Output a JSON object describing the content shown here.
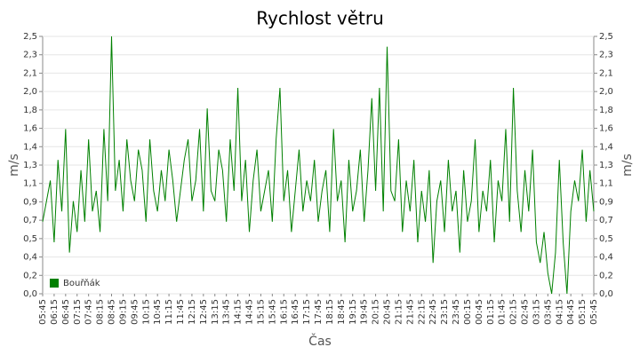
{
  "chart_data": {
    "type": "line",
    "title": "Rychlost větru",
    "x_label": "Čas",
    "y_label": "m/s",
    "legend": "lower left",
    "grid": true,
    "categories": [
      "05:45",
      null,
      null,
      "06:15",
      null,
      null,
      "06:45",
      null,
      null,
      "07:15",
      null,
      null,
      "07:45",
      null,
      null,
      "08:15",
      null,
      null,
      "08:45",
      null,
      null,
      "09:15",
      null,
      null,
      "09:45",
      null,
      null,
      "10:15",
      null,
      null,
      "10:45",
      null,
      null,
      "11:15",
      null,
      null,
      "11:45",
      null,
      null,
      "12:15",
      null,
      null,
      "12:45",
      null,
      null,
      "13:15",
      null,
      null,
      "13:45",
      null,
      null,
      "14:15",
      null,
      null,
      "14:45",
      null,
      null,
      "15:15",
      null,
      null,
      "15:45",
      null,
      null,
      "16:15",
      null,
      null,
      "16:45",
      null,
      null,
      "17:15",
      null,
      null,
      "17:45",
      null,
      null,
      "18:15",
      null,
      null,
      "18:45",
      null,
      null,
      "19:15",
      null,
      null,
      "19:45",
      null,
      null,
      "20:15",
      null,
      null,
      "20:45",
      null,
      null,
      "21:15",
      null,
      null,
      "21:45",
      null,
      null,
      "22:15",
      null,
      null,
      "22:45",
      null,
      null,
      "23:15",
      null,
      null,
      "23:45",
      null,
      null,
      "00:15",
      null,
      null,
      "00:45",
      null,
      null,
      "01:15",
      null,
      null,
      "01:45",
      null,
      null,
      "02:15",
      null,
      null,
      "02:45",
      null,
      null,
      "03:15",
      null,
      null,
      "03:45",
      null,
      null,
      "04:15",
      null,
      null,
      "04:45",
      null,
      null,
      "05:15",
      null,
      null,
      "05:45"
    ],
    "series": [
      {
        "name": "Bouřňák",
        "color": "#008000",
        "values": [
          0.7,
          0.9,
          1.1,
          0.5,
          1.3,
          0.8,
          1.6,
          0.4,
          0.9,
          0.6,
          1.2,
          0.7,
          1.5,
          0.8,
          1.0,
          0.6,
          1.6,
          0.9,
          2.5,
          1.0,
          1.3,
          0.8,
          1.5,
          1.1,
          0.9,
          1.4,
          1.2,
          0.7,
          1.5,
          1.0,
          0.8,
          1.2,
          0.9,
          1.4,
          1.1,
          0.7,
          1.0,
          1.3,
          1.5,
          0.9,
          1.1,
          1.6,
          0.8,
          1.8,
          1.0,
          0.9,
          1.4,
          1.2,
          0.7,
          1.5,
          1.0,
          2.0,
          0.9,
          1.3,
          0.6,
          1.1,
          1.4,
          0.8,
          1.0,
          1.2,
          0.7,
          1.5,
          2.0,
          0.9,
          1.2,
          0.6,
          1.0,
          1.4,
          0.8,
          1.1,
          0.9,
          1.3,
          0.7,
          1.0,
          1.2,
          0.6,
          1.6,
          0.9,
          1.1,
          0.5,
          1.3,
          0.8,
          1.0,
          1.4,
          0.7,
          1.2,
          1.9,
          1.0,
          2.0,
          0.8,
          2.4,
          1.0,
          0.9,
          1.5,
          0.6,
          1.1,
          0.8,
          1.3,
          0.5,
          1.0,
          0.7,
          1.2,
          0.3,
          0.9,
          1.1,
          0.6,
          1.3,
          0.8,
          1.0,
          0.4,
          1.2,
          0.7,
          0.9,
          1.5,
          0.6,
          1.0,
          0.8,
          1.3,
          0.5,
          1.1,
          0.9,
          1.6,
          0.7,
          2.0,
          1.0,
          0.6,
          1.2,
          0.8,
          1.4,
          0.5,
          0.3,
          0.6,
          0.2,
          0.0,
          0.4,
          1.3,
          0.5,
          0.0,
          0.8,
          1.1,
          0.9,
          1.4,
          0.7,
          1.2,
          0.8
        ]
      }
    ],
    "ylim": [
      0,
      2.5
    ],
    "yticks": [
      {
        "value": 0,
        "label": "0,0"
      },
      {
        "value": 0.1786,
        "label": "0,2"
      },
      {
        "value": 0.3571,
        "label": "0,4"
      },
      {
        "value": 0.5357,
        "label": "0,5"
      },
      {
        "value": 0.7143,
        "label": "0,7"
      },
      {
        "value": 0.8929,
        "label": "0,9"
      },
      {
        "value": 1.0714,
        "label": "1,1"
      },
      {
        "value": 1.25,
        "label": "1,3"
      },
      {
        "value": 1.4286,
        "label": "1,4"
      },
      {
        "value": 1.6071,
        "label": "1,6"
      },
      {
        "value": 1.7857,
        "label": "1,8"
      },
      {
        "value": 1.9643,
        "label": "2,0"
      },
      {
        "value": 2.1429,
        "label": "2,1"
      },
      {
        "value": 2.3214,
        "label": "2,3"
      },
      {
        "value": 2.5,
        "label": "2,5"
      }
    ]
  }
}
